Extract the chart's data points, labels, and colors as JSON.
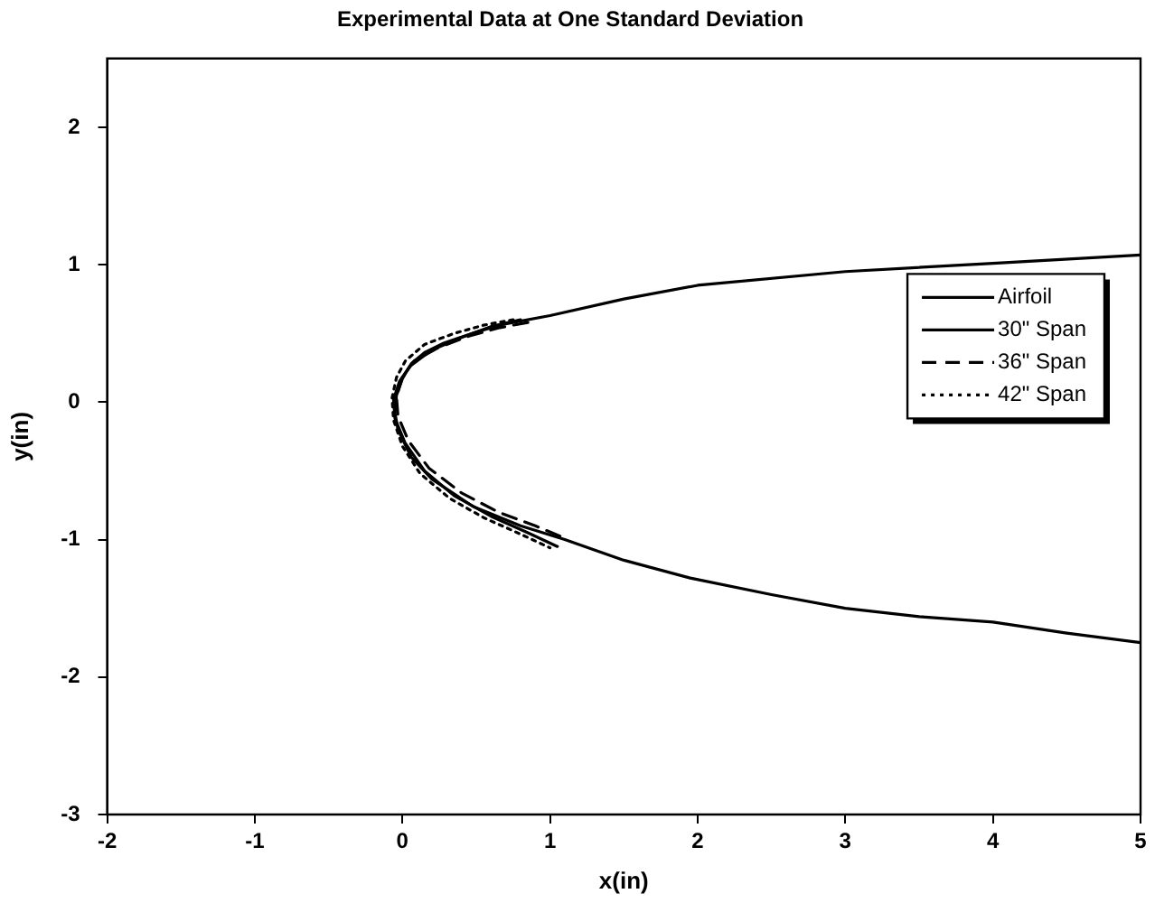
{
  "chart_data": {
    "type": "line",
    "title": "Experimental Data at One Standard Deviation",
    "xlabel": "x(in)",
    "ylabel": "y(in)",
    "xlim": [
      -2,
      5
    ],
    "ylim": [
      -3,
      2.5
    ],
    "xticks": [
      -2,
      -1,
      0,
      1,
      2,
      3,
      4,
      5
    ],
    "yticks": [
      -3,
      -2,
      -1,
      0,
      1,
      2
    ],
    "grid": false,
    "legend": "right",
    "marker": "none",
    "series": [
      {
        "name": "Airfoil",
        "color": "#000000",
        "line_style": "solid",
        "x": [
          5,
          4,
          3,
          2,
          1.5,
          1,
          0.7,
          0.5,
          0.28,
          0.15,
          0.06,
          0,
          -0.04,
          -0.05,
          -0.03,
          0.06,
          0.2,
          0.48,
          0.8,
          1.1,
          1.5,
          1.95,
          2.5,
          3,
          3.5,
          4,
          4.5,
          5
        ],
        "values": [
          1.07,
          1.01,
          0.95,
          0.85,
          0.75,
          0.63,
          0.57,
          0.51,
          0.43,
          0.36,
          0.28,
          0.17,
          0.05,
          -0.08,
          -0.2,
          -0.4,
          -0.56,
          -0.76,
          -0.9,
          -1.0,
          -1.15,
          -1.28,
          -1.4,
          -1.5,
          -1.56,
          -1.6,
          -1.68,
          -1.75
        ]
      },
      {
        "name": "30\" Span",
        "color": "#000000",
        "line_style": "solid",
        "x": [
          0.8,
          0.6,
          0.4,
          0.2,
          0.05,
          -0.02,
          -0.06,
          -0.05,
          0.02,
          0.15,
          0.35,
          0.6,
          0.85,
          1.05
        ],
        "values": [
          0.6,
          0.55,
          0.47,
          0.38,
          0.26,
          0.15,
          0.02,
          -0.12,
          -0.3,
          -0.5,
          -0.68,
          -0.83,
          -0.95,
          -1.05
        ]
      },
      {
        "name": "36\" Span",
        "color": "#000000",
        "line_style": "dashed",
        "x": [
          0.85,
          0.65,
          0.45,
          0.25,
          0.08,
          0,
          -0.04,
          -0.03,
          0.04,
          0.18,
          0.4,
          0.65,
          0.9,
          1.08
        ],
        "values": [
          0.58,
          0.54,
          0.48,
          0.4,
          0.3,
          0.18,
          0.04,
          -0.1,
          -0.28,
          -0.48,
          -0.66,
          -0.8,
          -0.9,
          -0.98
        ]
      },
      {
        "name": "42\" Span",
        "color": "#000000",
        "line_style": "dotted",
        "x": [
          0.75,
          0.55,
          0.35,
          0.15,
          0.02,
          -0.04,
          -0.07,
          -0.06,
          0,
          0.12,
          0.32,
          0.55,
          0.8,
          1.0
        ],
        "values": [
          0.6,
          0.56,
          0.5,
          0.42,
          0.3,
          0.18,
          0.03,
          -0.13,
          -0.32,
          -0.52,
          -0.7,
          -0.84,
          -0.96,
          -1.06
        ]
      }
    ]
  }
}
